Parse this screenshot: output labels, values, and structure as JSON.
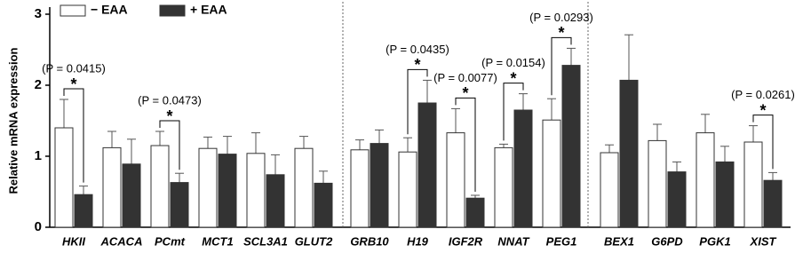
{
  "chart_data": {
    "type": "bar",
    "y_label": "Relative mRNA expression",
    "categories": [
      "HKII",
      "ACACA",
      "PCmt",
      "MCT1",
      "SCL3A1",
      "GLUT2",
      "GRB10",
      "H19",
      "IGF2R",
      "NNAT",
      "PEG1",
      "BEX1",
      "G6PD",
      "PGK1",
      "XIST"
    ],
    "series": [
      {
        "name": "− EAA",
        "color": "#ffffff",
        "values": [
          1.4,
          1.12,
          1.15,
          1.11,
          1.04,
          1.11,
          1.09,
          1.06,
          1.33,
          1.12,
          1.51,
          1.05,
          1.22,
          1.33,
          1.2
        ],
        "errors": [
          0.4,
          0.23,
          0.2,
          0.16,
          0.29,
          0.17,
          0.14,
          0.2,
          0.34,
          0.05,
          0.3,
          0.11,
          0.23,
          0.26,
          0.23
        ]
      },
      {
        "name": "+ EAA",
        "color": "#333333",
        "values": [
          0.46,
          0.89,
          0.63,
          1.03,
          0.74,
          0.62,
          1.18,
          1.75,
          0.41,
          1.65,
          2.28,
          2.07,
          0.78,
          0.92,
          0.66
        ],
        "errors": [
          0.12,
          0.35,
          0.13,
          0.25,
          0.28,
          0.17,
          0.19,
          0.32,
          0.04,
          0.23,
          0.24,
          0.64,
          0.14,
          0.22,
          0.11
        ]
      }
    ],
    "annotations": [
      {
        "category": "HKII",
        "text": "(P = 0.0415)",
        "mark": "*"
      },
      {
        "category": "PCmt",
        "text": "(P = 0.0473)",
        "mark": "*"
      },
      {
        "category": "H19",
        "text": "(P = 0.0435)",
        "mark": "*"
      },
      {
        "category": "IGF2R",
        "text": "(P = 0.0077)",
        "mark": "*"
      },
      {
        "category": "NNAT",
        "text": "(P = 0.0154)",
        "mark": "*"
      },
      {
        "category": "PEG1",
        "text": "(P = 0.0293)",
        "mark": "*"
      },
      {
        "category": "XIST",
        "text": "(P = 0.0261)",
        "mark": "*"
      }
    ],
    "ylim": [
      0,
      3.1
    ],
    "yticks": [
      0,
      1,
      2,
      3
    ]
  }
}
